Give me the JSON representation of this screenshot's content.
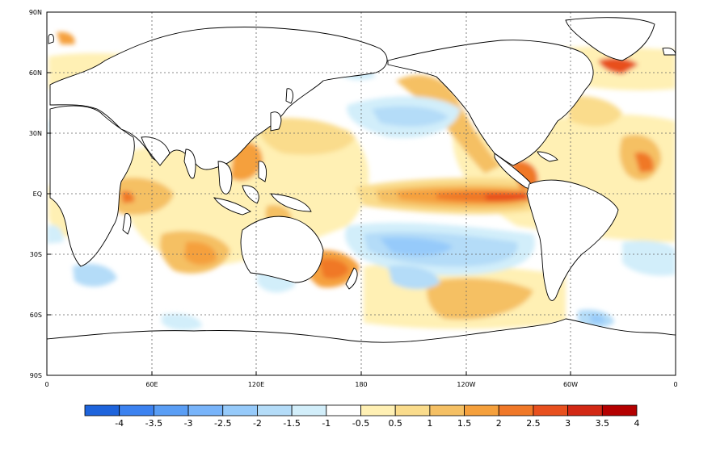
{
  "map": {
    "lat_labels": [
      "90N",
      "60N",
      "30N",
      "EQ",
      "30S",
      "60S",
      "90S"
    ],
    "lon_labels": [
      "0",
      "60E",
      "120E",
      "180",
      "120W",
      "60W",
      "0"
    ],
    "grid": "dotted",
    "land_fill": "#ffffff",
    "coastline_color": "#000000"
  },
  "colorbar": {
    "colors": [
      "#1e64dc",
      "#3c82f0",
      "#5a9ef5",
      "#78b4fa",
      "#96cafa",
      "#b4dcf8",
      "#d2eefa",
      "#ffffff",
      "#fff0b4",
      "#fadc8c",
      "#f5c064",
      "#f5a03c",
      "#f07828",
      "#e8501e",
      "#d22814",
      "#b40000"
    ],
    "labels": [
      "-4",
      "-3.5",
      "-3",
      "-2.5",
      "-2",
      "-1.5",
      "-1",
      "-0.5",
      "0.5",
      "1",
      "1.5",
      "2",
      "2.5",
      "3",
      "3.5",
      "4"
    ]
  }
}
